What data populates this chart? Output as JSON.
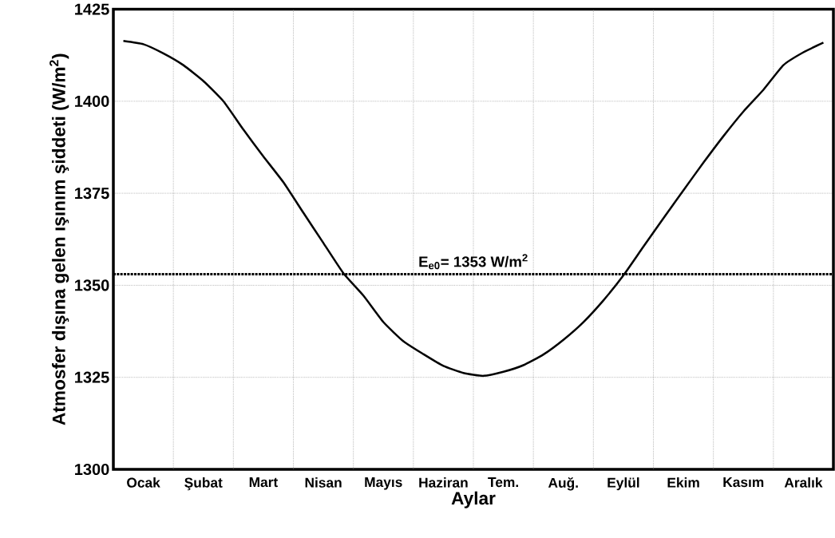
{
  "chart_data": {
    "type": "line",
    "xlabel": "Aylar",
    "ylabel": "Atmosfer dışına gelen ışınım şiddeti (W/m$^{2}$)",
    "ylim": [
      1300,
      1425
    ],
    "yticks": [
      1300,
      1325,
      1350,
      1375,
      1400,
      1425
    ],
    "categories": [
      null,
      "Ocak",
      null,
      null,
      "Şubat",
      null,
      null,
      "Mart",
      null,
      null,
      "Nisan",
      null,
      null,
      "Mayıs",
      null,
      null,
      "Haziran",
      null,
      null,
      "Tem.",
      null,
      null,
      "Auğ.",
      null,
      null,
      "Eylül",
      null,
      null,
      "Ekim",
      null,
      null,
      "Kasım",
      null,
      null,
      "Aralık",
      null
    ],
    "grid": true,
    "marker": "none",
    "line_style": "solid",
    "ref_lines": [
      {
        "axis": "y",
        "value": 1353,
        "label": "E$_{e0}$= 1353 W/m$^{2}$",
        "color": "#000000",
        "line_style": "dotted"
      }
    ],
    "series": [
      {
        "color": "#000000",
        "values": [
          1416.4,
          1415.5,
          1413.0,
          1409.8,
          1405.5,
          1400.0,
          1392.3,
          1385.0,
          1378.0,
          1369.7,
          1361.5,
          1353.3,
          1347.2,
          1340.0,
          1334.8,
          1331.3,
          1328.1,
          1326.2,
          1325.4,
          1326.5,
          1328.3,
          1331.2,
          1335.2,
          1340.0,
          1345.9,
          1352.7,
          1360.5,
          1368.2,
          1375.8,
          1383.3,
          1390.5,
          1397.2,
          1403.1,
          1409.8,
          1413.3,
          1415.9
        ]
      }
    ]
  }
}
